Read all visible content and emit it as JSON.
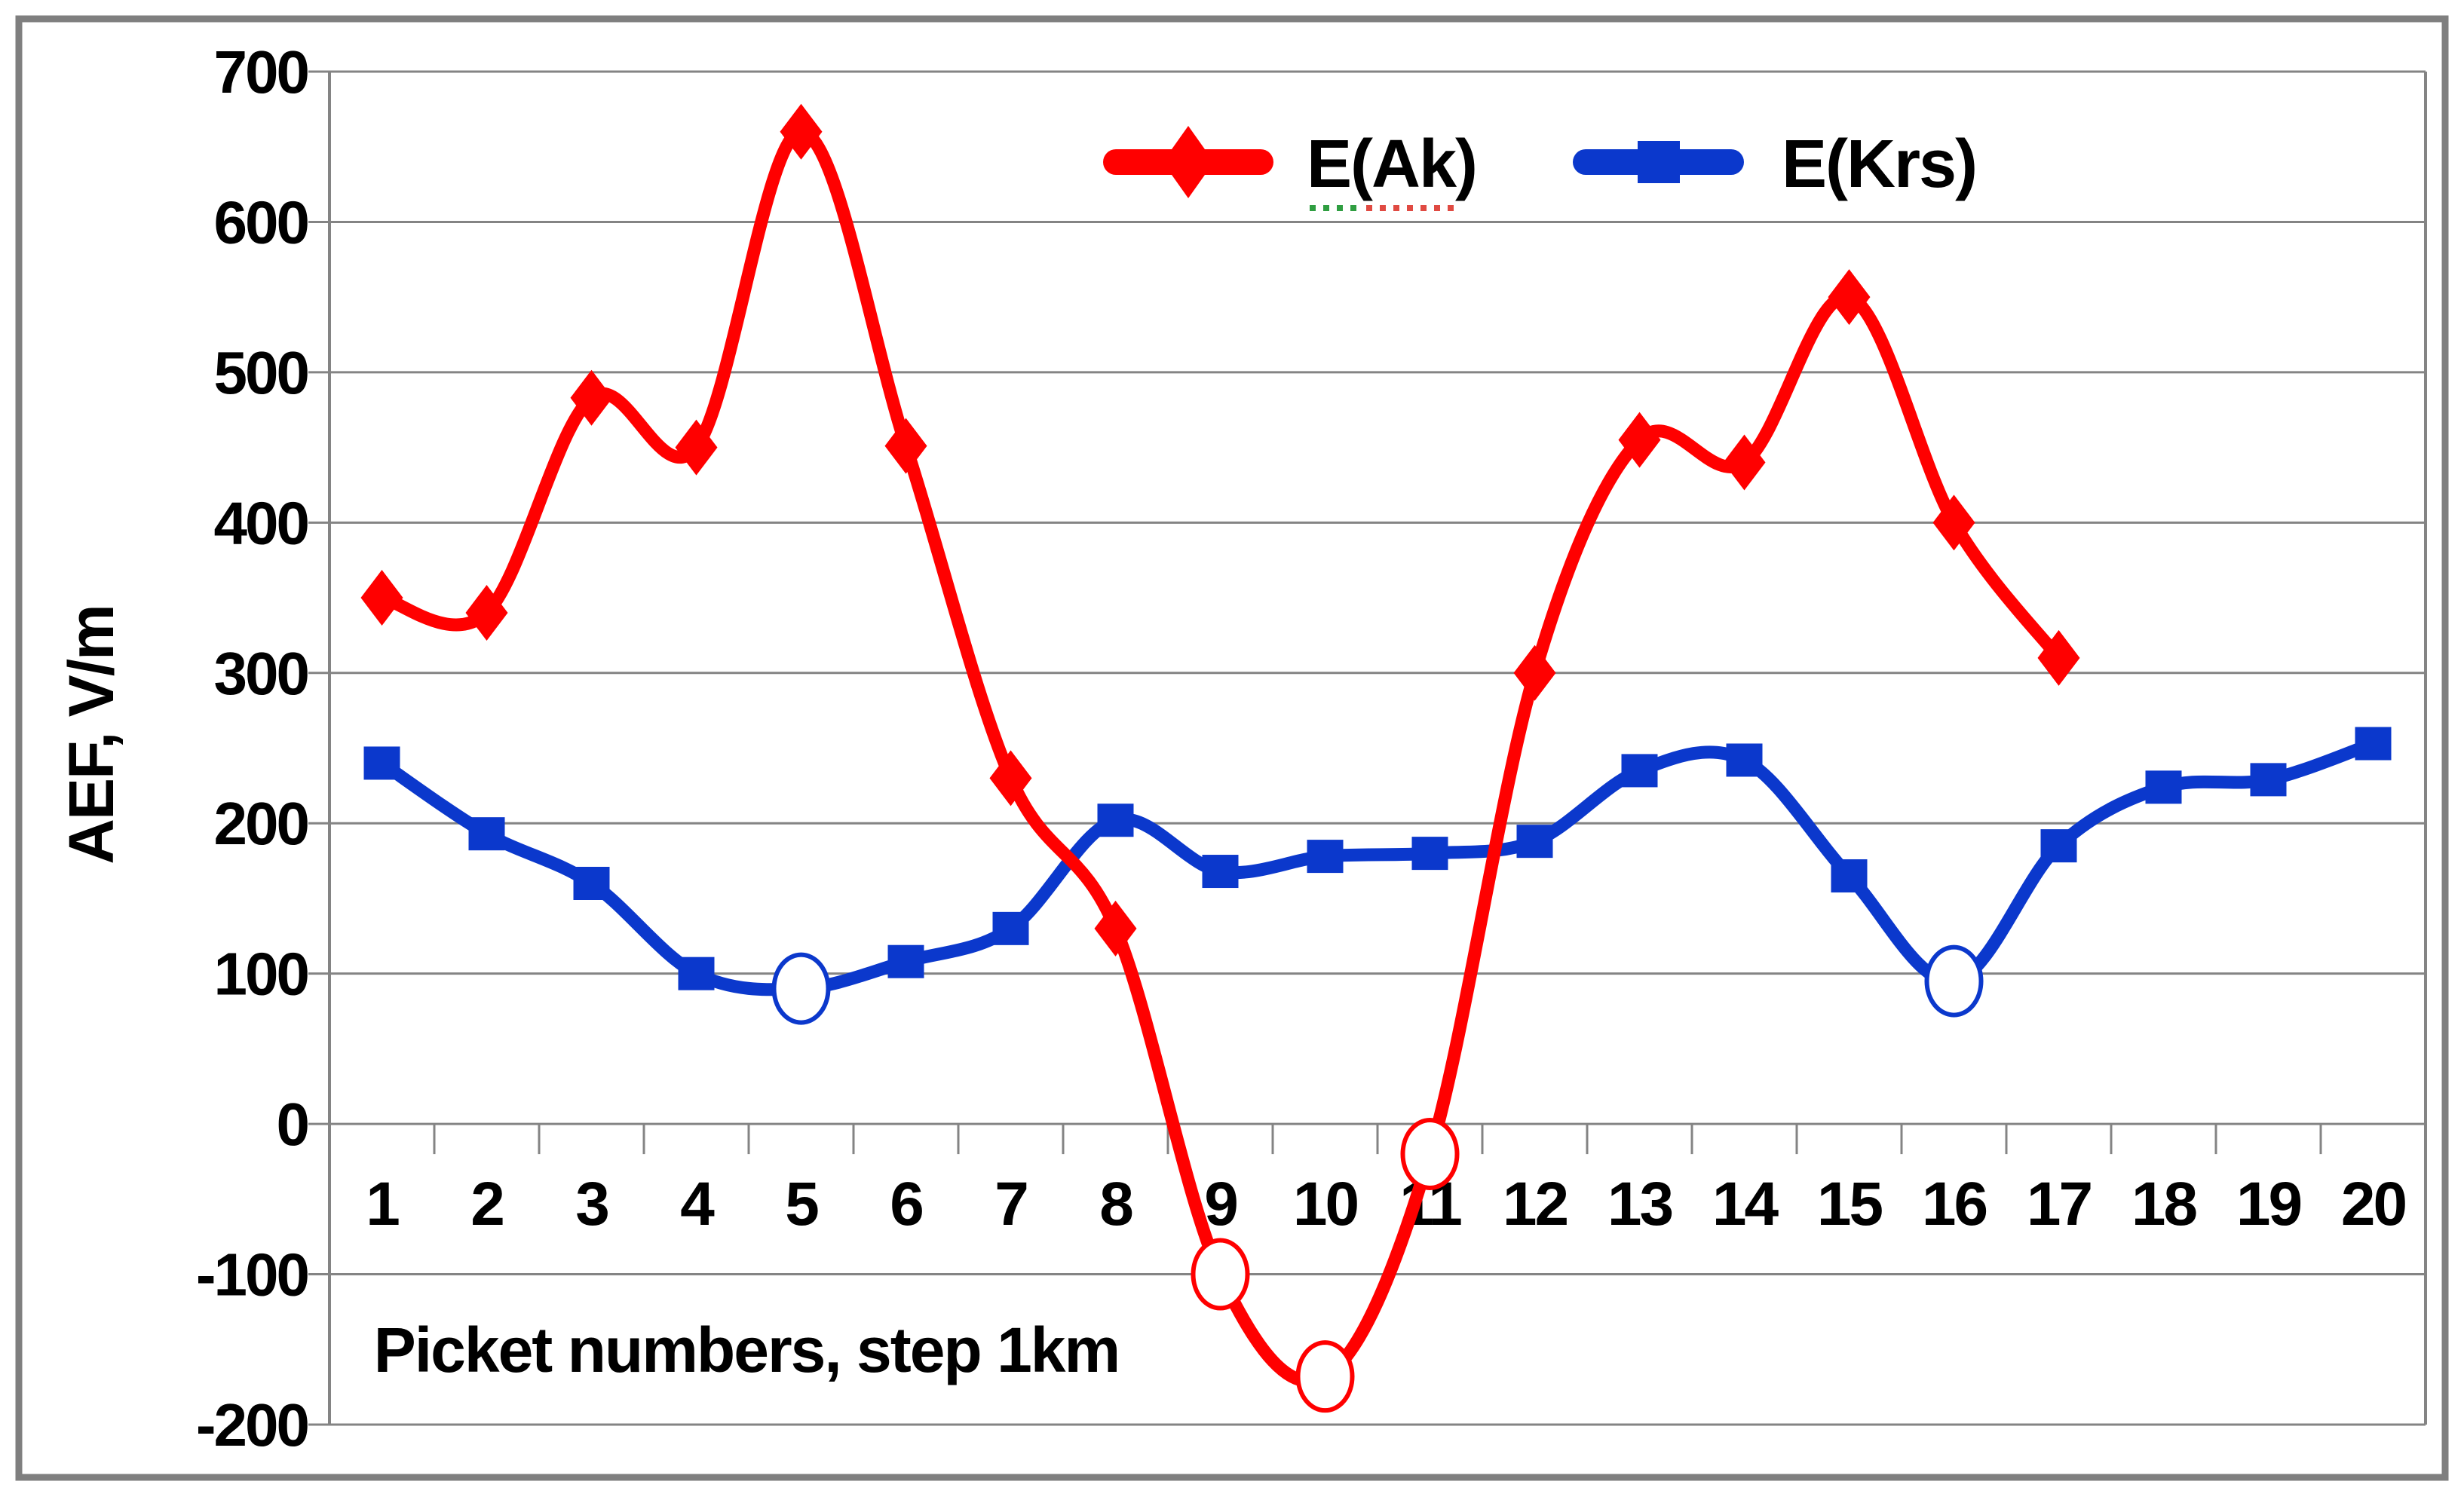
{
  "chart_data": {
    "type": "line",
    "title": "",
    "xlabel": "Picket numbers, step 1km",
    "ylabel": "AEF, V/m",
    "categories": [
      "1",
      "2",
      "3",
      "4",
      "5",
      "6",
      "7",
      "8",
      "9",
      "10",
      "11",
      "12",
      "13",
      "14",
      "15",
      "16",
      "17",
      "18",
      "19",
      "20"
    ],
    "x_axis_note": "picket numbers, step 1 km",
    "ylim": [
      -200,
      700
    ],
    "y_ticks": [
      700,
      600,
      500,
      400,
      300,
      200,
      100,
      0,
      -100,
      -200
    ],
    "grid": "horizontal-on",
    "legend_position": "top-center-inside",
    "series": [
      {
        "name": "E(Ak)",
        "color": "#ff0000",
        "marker": "diamond",
        "smooth": true,
        "x": [
          1,
          2,
          3,
          4,
          5,
          6,
          7,
          8,
          9,
          10,
          11,
          12,
          13,
          14,
          15,
          16,
          17
        ],
        "values": [
          350,
          340,
          483,
          450,
          660,
          451,
          230,
          130,
          -100,
          -168,
          -20,
          300,
          455,
          440,
          550,
          400,
          310
        ],
        "open_circle_points": [
          9,
          10,
          11
        ],
        "spellcheck_underline": true
      },
      {
        "name": "E(Krs)",
        "color": "#0b38cc",
        "marker": "square",
        "smooth": true,
        "x": [
          1,
          2,
          3,
          4,
          5,
          6,
          7,
          8,
          9,
          10,
          11,
          12,
          13,
          14,
          15,
          16,
          17,
          18,
          19,
          20
        ],
        "values": [
          240,
          193,
          160,
          100,
          90,
          108,
          130,
          202,
          168,
          178,
          180,
          188,
          235,
          242,
          165,
          95,
          185,
          224,
          229,
          253
        ],
        "open_circle_points": [
          5,
          16
        ],
        "spellcheck_underline": false
      }
    ]
  },
  "frame": {
    "background": "#ffffff",
    "outer_border_color": "#7f7f7f",
    "grid_color": "#848484",
    "text_color": "#000000",
    "underline_green": "#2f9e41",
    "underline_red": "#e04a42"
  }
}
